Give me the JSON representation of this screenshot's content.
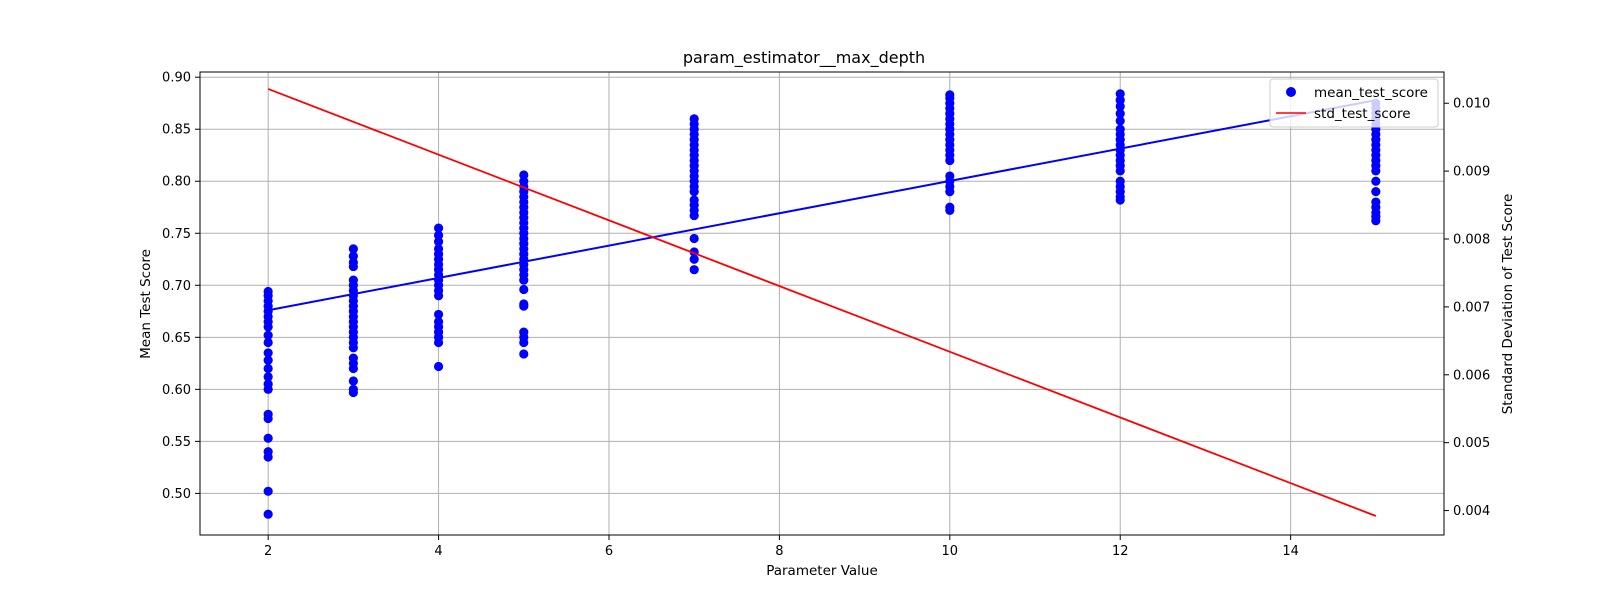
{
  "chart_data": {
    "type": "scatter",
    "title": "param_estimator__max_depth",
    "xlabel": "Parameter Value",
    "ylabel": "Mean Test Score",
    "y2label": "Standard Deviation of Test Score",
    "xlim": [
      1.2,
      15.8
    ],
    "ylim": [
      0.46,
      0.905
    ],
    "y2lim": [
      0.00364,
      0.01046
    ],
    "xticks": [
      "2",
      "4",
      "6",
      "8",
      "10",
      "12",
      "14"
    ],
    "yticks": [
      "0.50",
      "0.55",
      "0.60",
      "0.65",
      "0.70",
      "0.75",
      "0.80",
      "0.85",
      "0.90"
    ],
    "y2ticks": [
      "0.004",
      "0.005",
      "0.006",
      "0.007",
      "0.008",
      "0.009",
      "0.010"
    ],
    "grid": true,
    "legend_position": "top-right",
    "colors": {
      "scatter": "#0000ff",
      "trend": "#0000ff",
      "std": "#ff0000",
      "grid": "#b0b0b0"
    },
    "legend": [
      {
        "label": "mean_test_score",
        "marker": "circle",
        "color": "#0000ff"
      },
      {
        "label": "std_test_score",
        "marker": "line",
        "color": "#ff0000"
      }
    ],
    "series": [
      {
        "name": "mean_test_score",
        "type": "scatter",
        "points": [
          {
            "x": 2,
            "y": [
              0.48,
              0.502,
              0.535,
              0.54,
              0.553,
              0.572,
              0.576,
              0.6,
              0.605,
              0.612,
              0.62,
              0.628,
              0.635,
              0.645,
              0.652,
              0.66,
              0.665,
              0.67,
              0.675,
              0.68,
              0.685,
              0.69,
              0.694
            ]
          },
          {
            "x": 3,
            "y": [
              0.597,
              0.6,
              0.608,
              0.62,
              0.625,
              0.63,
              0.64,
              0.645,
              0.65,
              0.655,
              0.66,
              0.665,
              0.67,
              0.675,
              0.68,
              0.685,
              0.69,
              0.695,
              0.7,
              0.705,
              0.718,
              0.722,
              0.728,
              0.735
            ]
          },
          {
            "x": 4,
            "y": [
              0.622,
              0.645,
              0.65,
              0.655,
              0.66,
              0.665,
              0.672,
              0.69,
              0.695,
              0.7,
              0.705,
              0.71,
              0.715,
              0.72,
              0.725,
              0.73,
              0.735,
              0.742,
              0.748,
              0.755
            ]
          },
          {
            "x": 5,
            "y": [
              0.634,
              0.645,
              0.65,
              0.655,
              0.68,
              0.682,
              0.696,
              0.705,
              0.71,
              0.715,
              0.72,
              0.725,
              0.73,
              0.735,
              0.74,
              0.745,
              0.75,
              0.755,
              0.76,
              0.765,
              0.77,
              0.775,
              0.78,
              0.785,
              0.79,
              0.795,
              0.8,
              0.806
            ]
          },
          {
            "x": 7,
            "y": [
              0.715,
              0.725,
              0.732,
              0.745,
              0.767,
              0.772,
              0.777,
              0.782,
              0.79,
              0.795,
              0.8,
              0.805,
              0.81,
              0.815,
              0.82,
              0.825,
              0.83,
              0.835,
              0.84,
              0.845,
              0.85,
              0.855,
              0.86
            ]
          },
          {
            "x": 10,
            "y": [
              0.772,
              0.775,
              0.79,
              0.795,
              0.8,
              0.805,
              0.82,
              0.825,
              0.83,
              0.835,
              0.84,
              0.845,
              0.85,
              0.855,
              0.86,
              0.865,
              0.87,
              0.875,
              0.88,
              0.883
            ]
          },
          {
            "x": 12,
            "y": [
              0.782,
              0.785,
              0.79,
              0.795,
              0.8,
              0.81,
              0.815,
              0.82,
              0.825,
              0.83,
              0.835,
              0.84,
              0.845,
              0.85,
              0.858,
              0.865,
              0.872,
              0.878,
              0.884
            ]
          },
          {
            "x": 15,
            "y": [
              0.762,
              0.766,
              0.77,
              0.775,
              0.78,
              0.79,
              0.8,
              0.81,
              0.815,
              0.82,
              0.825,
              0.83,
              0.835,
              0.84,
              0.845,
              0.85,
              0.855,
              0.86,
              0.865,
              0.87,
              0.875
            ]
          }
        ]
      },
      {
        "name": "trend",
        "type": "line",
        "axis": "y",
        "x": [
          2,
          15
        ],
        "y": [
          0.676,
          0.878
        ]
      },
      {
        "name": "std_test_score",
        "type": "line",
        "axis": "y2",
        "x": [
          2,
          15
        ],
        "y": [
          0.01021,
          0.00392
        ]
      }
    ]
  }
}
